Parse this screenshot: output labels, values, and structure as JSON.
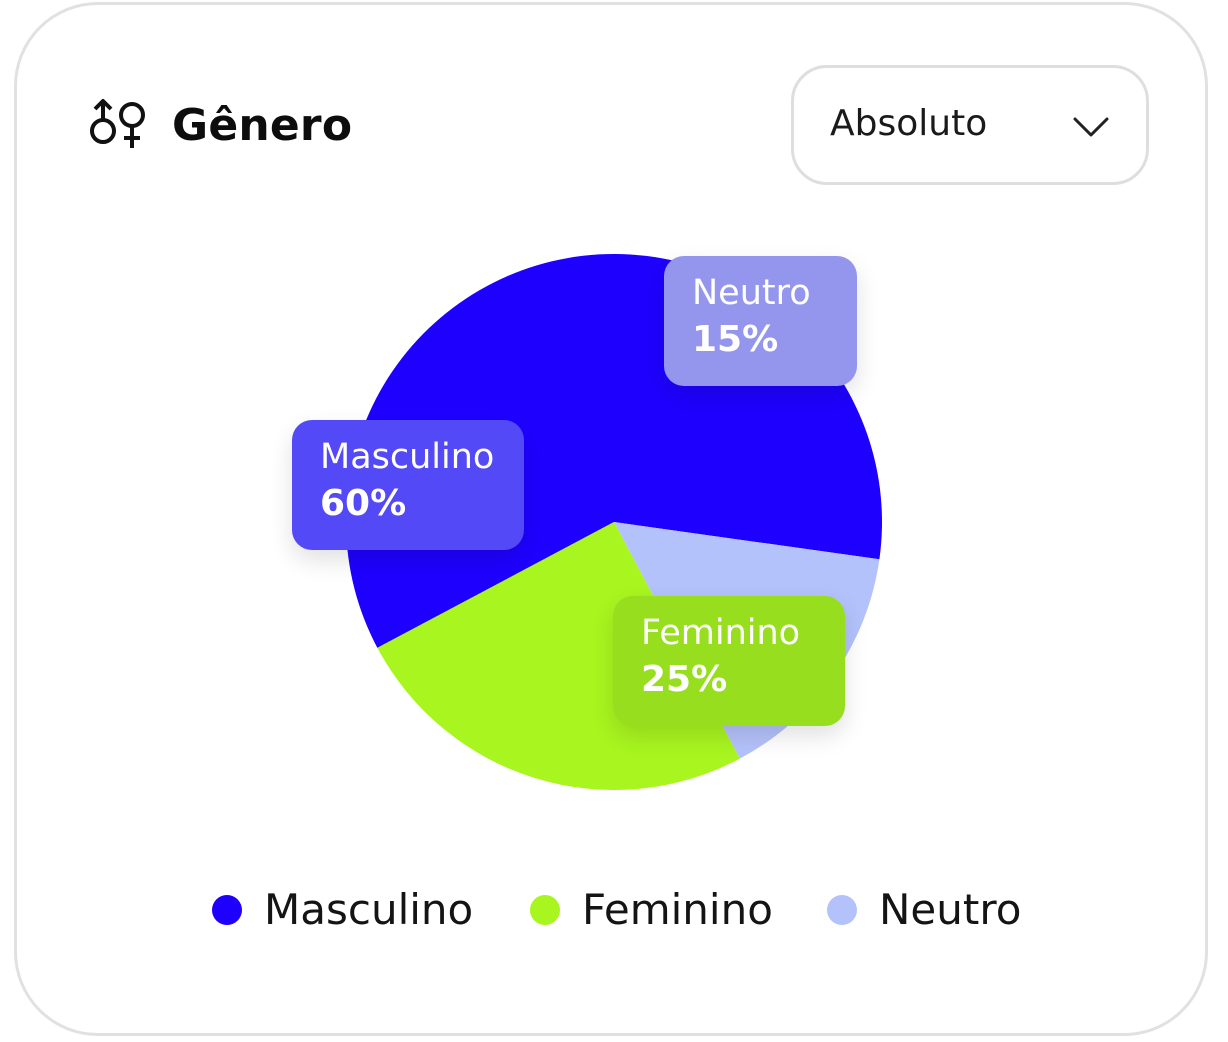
{
  "header": {
    "title": "Gênero",
    "icon": "gender-icon"
  },
  "dropdown": {
    "value": "Absoluto",
    "icon": "chevron-down-icon"
  },
  "colors": {
    "masculino": "#1e00ff",
    "feminino": "#a8f51f",
    "neutro": "#b4c2fb"
  },
  "chart_data": {
    "type": "pie",
    "title": "Gênero",
    "slices": [
      {
        "name": "Masculino",
        "value": 60,
        "label": "60%",
        "color": "#1e00ff"
      },
      {
        "name": "Feminino",
        "value": 25,
        "label": "25%",
        "color": "#a8f51f"
      },
      {
        "name": "Neutro",
        "value": 15,
        "label": "15%",
        "color": "#b4c2fb"
      }
    ],
    "legend": {
      "placement": "bottom",
      "entries": [
        "Masculino",
        "Feminino",
        "Neutro"
      ]
    }
  },
  "tooltips": {
    "masculino": {
      "name": "Masculino",
      "value": "60%"
    },
    "feminino": {
      "name": "Feminino",
      "value": "25%"
    },
    "neutro": {
      "name": "Neutro",
      "value": "15%"
    }
  }
}
